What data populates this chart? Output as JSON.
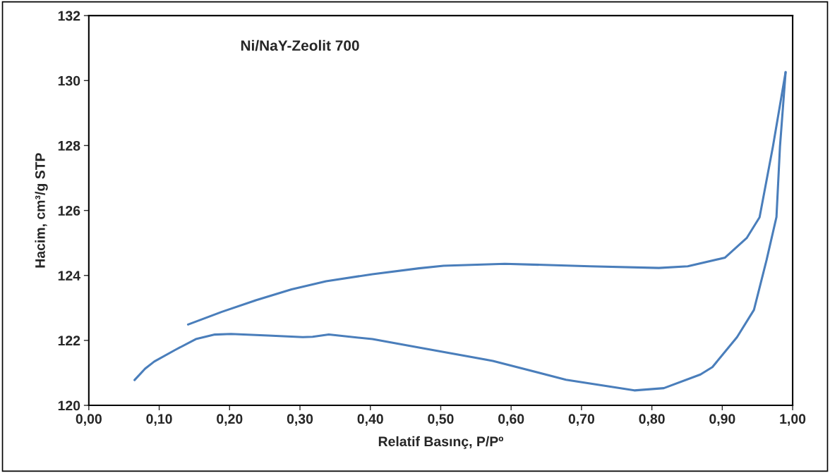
{
  "chart_data": {
    "type": "line",
    "title": "Ni/NaY-Zeolit 700",
    "xlabel": "Relatif Basınç, P/Pº",
    "ylabel": "Hacim, cm³/g STP",
    "series": [
      {
        "color": "#4a7ebb",
        "x": [
          0.065,
          0.08,
          0.093,
          0.123,
          0.152,
          0.179,
          0.202,
          0.255,
          0.304,
          0.318,
          0.341,
          0.403,
          0.469,
          0.574,
          0.678,
          0.775,
          0.817,
          0.869,
          0.886,
          0.921,
          0.945,
          0.963,
          0.977,
          0.982,
          0.99
        ],
        "values": [
          120.78,
          121.13,
          121.35,
          121.71,
          122.04,
          122.18,
          122.2,
          122.15,
          122.1,
          122.11,
          122.18,
          122.04,
          121.78,
          121.37,
          120.79,
          120.46,
          120.53,
          120.95,
          121.18,
          122.1,
          122.94,
          124.48,
          125.8,
          127.97,
          130.26
        ]
      },
      {
        "color": "#4a7ebb",
        "x": [
          0.99,
          0.972,
          0.953,
          0.935,
          0.904,
          0.851,
          0.81,
          0.712,
          0.591,
          0.504,
          0.469,
          0.403,
          0.337,
          0.288,
          0.238,
          0.189,
          0.141
        ],
        "values": [
          130.26,
          127.97,
          125.79,
          125.16,
          124.55,
          124.28,
          124.23,
          124.28,
          124.36,
          124.3,
          124.22,
          124.04,
          123.82,
          123.57,
          123.24,
          122.88,
          122.49
        ]
      }
    ],
    "xlim": [
      0,
      1
    ],
    "ylim": [
      120,
      132
    ],
    "xticks": [
      {
        "value": 0,
        "label": "0,00"
      },
      {
        "value": 0.1,
        "label": "0,10"
      },
      {
        "value": 0.2,
        "label": "0,20"
      },
      {
        "value": 0.3,
        "label": "0,30"
      },
      {
        "value": 0.4,
        "label": "0,40"
      },
      {
        "value": 0.5,
        "label": "0,50"
      },
      {
        "value": 0.6,
        "label": "0,60"
      },
      {
        "value": 0.7,
        "label": "0,70"
      },
      {
        "value": 0.8,
        "label": "0,80"
      },
      {
        "value": 0.9,
        "label": "0,90"
      },
      {
        "value": 1,
        "label": "1,00"
      }
    ],
    "yticks": [
      120,
      122,
      124,
      126,
      128,
      130,
      132
    ],
    "grid": false,
    "legend": false,
    "marker": "none",
    "line_style": "solid"
  }
}
